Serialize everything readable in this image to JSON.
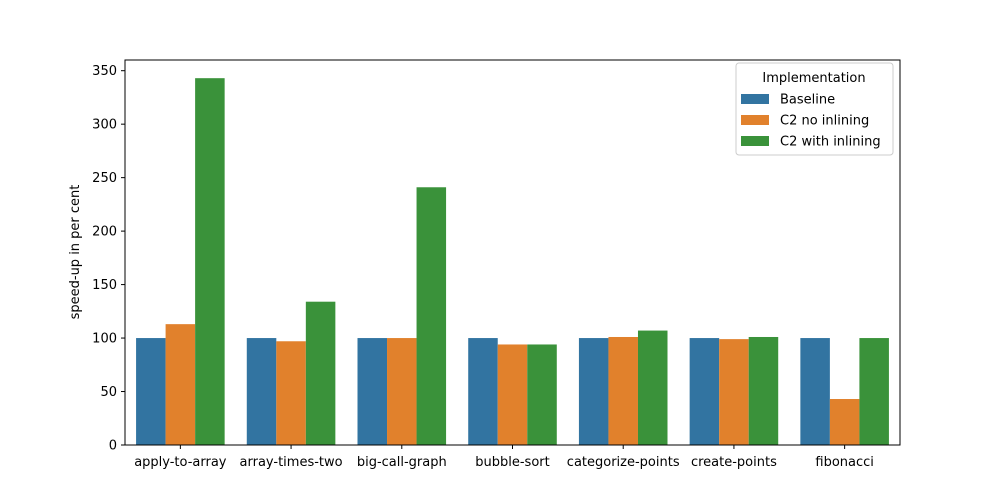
{
  "chart_data": {
    "type": "bar",
    "title": "",
    "xlabel": "",
    "ylabel": "speed-up in per cent",
    "ylim": [
      0,
      360
    ],
    "yticks": [
      0,
      50,
      100,
      150,
      200,
      250,
      300,
      350
    ],
    "grid": false,
    "legend": {
      "title": "Implementation",
      "placement": "top-right"
    },
    "categories": [
      "apply-to-array",
      "array-times-two",
      "big-call-graph",
      "bubble-sort",
      "categorize-points",
      "create-points",
      "fibonacci"
    ],
    "series": [
      {
        "name": "Baseline",
        "color": "#3274a1",
        "values": [
          100,
          100,
          100,
          100,
          100,
          100,
          100
        ]
      },
      {
        "name": "C2 no inlining",
        "color": "#e1812c",
        "values": [
          113,
          97,
          100,
          94,
          101,
          99,
          43
        ]
      },
      {
        "name": "C2 with inlining",
        "color": "#3a923a",
        "values": [
          343,
          134,
          241,
          94,
          107,
          101,
          100
        ]
      }
    ]
  }
}
